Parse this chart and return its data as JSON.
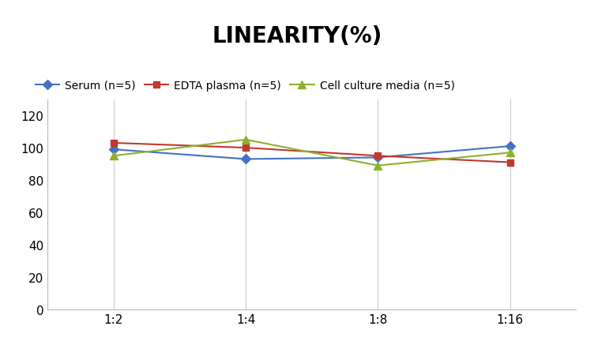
{
  "title": "LINEARITY(%)",
  "x_labels": [
    "1:2",
    "1:4",
    "1:8",
    "1:16"
  ],
  "x_positions": [
    0,
    1,
    2,
    3
  ],
  "series": [
    {
      "label": "Serum (n=5)",
      "values": [
        99,
        93,
        94,
        101
      ],
      "color": "#4472C4",
      "marker": "D",
      "markersize": 6
    },
    {
      "label": "EDTA plasma (n=5)",
      "values": [
        103,
        100,
        95,
        91
      ],
      "color": "#C0392B",
      "marker": "s",
      "markersize": 6
    },
    {
      "label": "Cell culture media (n=5)",
      "values": [
        95,
        105,
        89,
        97
      ],
      "color": "#8DB030",
      "marker": "^",
      "markersize": 7
    }
  ],
  "ylim": [
    0,
    130
  ],
  "yticks": [
    0,
    20,
    40,
    60,
    80,
    100,
    120
  ],
  "background_color": "#ffffff",
  "grid_color": "#cccccc",
  "title_fontsize": 20,
  "legend_fontsize": 10,
  "tick_fontsize": 11
}
